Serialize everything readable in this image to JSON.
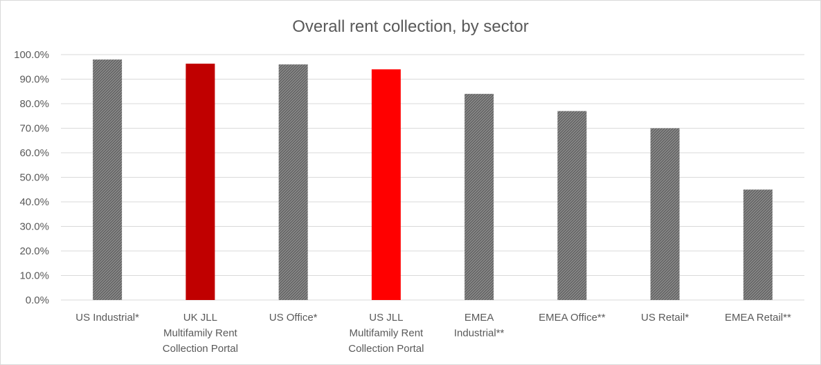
{
  "chart_data": {
    "type": "bar",
    "title": "Overall rent collection, by sector",
    "xlabel": "",
    "ylabel": "",
    "ylim": [
      0,
      100
    ],
    "y_ticks": [
      "0.0%",
      "10.0%",
      "20.0%",
      "30.0%",
      "40.0%",
      "50.0%",
      "60.0%",
      "70.0%",
      "80.0%",
      "90.0%",
      "100.0%"
    ],
    "y_tick_values": [
      0,
      10,
      20,
      30,
      40,
      50,
      60,
      70,
      80,
      90,
      100
    ],
    "grid": true,
    "legend": "none",
    "categories": [
      [
        "US Industrial*"
      ],
      [
        "UK JLL",
        "Multifamily Rent",
        "Collection Portal"
      ],
      [
        "US Office*"
      ],
      [
        "US JLL",
        "Multifamily Rent",
        "Collection Portal"
      ],
      [
        "EMEA",
        "Industrial**"
      ],
      [
        "EMEA Office**"
      ],
      [
        "US Retail*"
      ],
      [
        "EMEA Retail**"
      ]
    ],
    "values": [
      98,
      96.3,
      96,
      94,
      84,
      77,
      70,
      45
    ],
    "bar_colors": [
      "#7f7f7f",
      "#c00000",
      "#7f7f7f",
      "#ff0000",
      "#7f7f7f",
      "#7f7f7f",
      "#7f7f7f",
      "#7f7f7f"
    ],
    "bar_hatched": [
      true,
      false,
      true,
      false,
      true,
      true,
      true,
      true
    ]
  }
}
